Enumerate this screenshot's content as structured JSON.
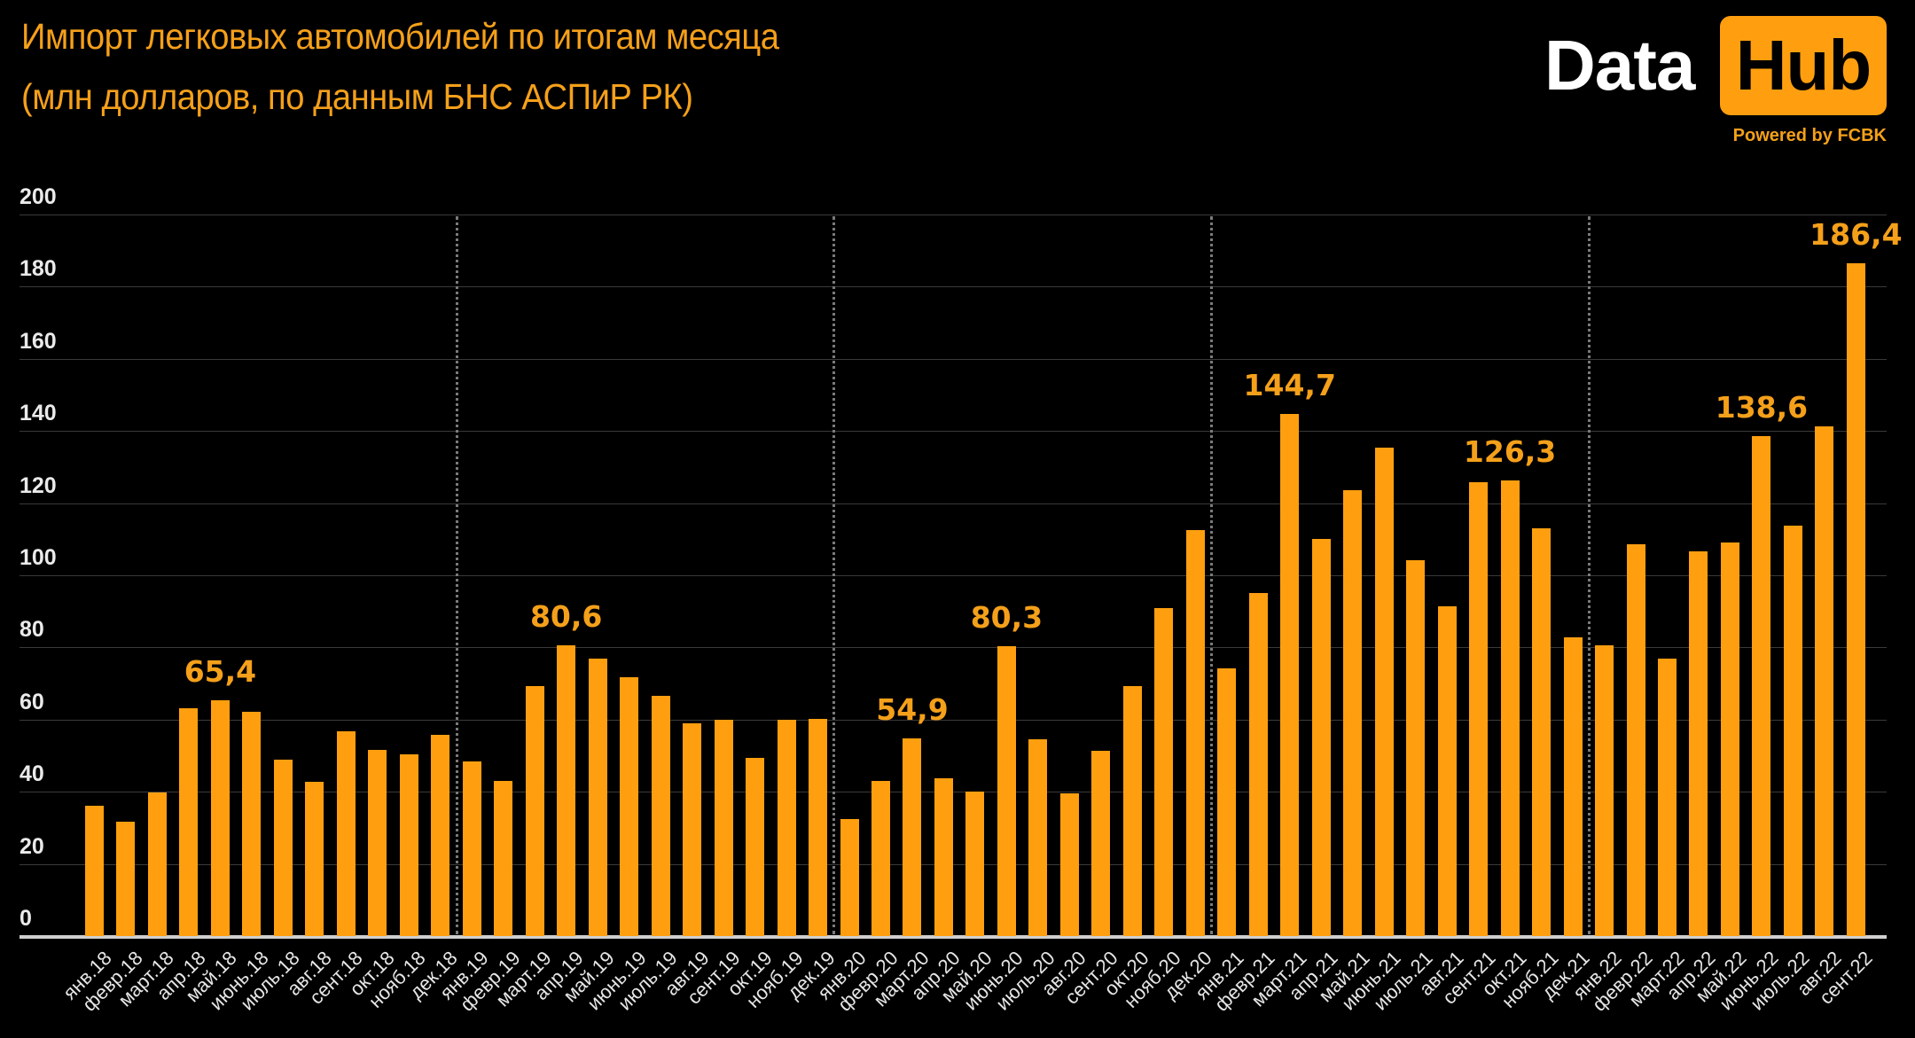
{
  "header": {
    "title_line1": "Импорт легковых автомобилей по итогам месяца",
    "title_line2": "(млн долларов, по данным БНС АСПиР РК)"
  },
  "logo": {
    "data_text": "Data",
    "hub_text": "Hub",
    "powered_by": "Powered by FCBK"
  },
  "colors": {
    "background": "#000000",
    "bar": "#FF9F0F",
    "accent_text": "#F5A01A",
    "axis_text": "#EAEAEA",
    "gridline": "#3A3A3A",
    "divider": "#7A7A7A"
  },
  "chart_data": {
    "type": "bar",
    "title": "Импорт легковых автомобилей по итогам месяца (млн долларов, по данным БНС АСПиР РК)",
    "xlabel": "",
    "ylabel": "",
    "ylim": [
      0,
      200
    ],
    "yticks": [
      0,
      20,
      40,
      60,
      80,
      100,
      120,
      140,
      160,
      180,
      200
    ],
    "grid": true,
    "year_dividers_after": [
      "дек.18",
      "дек.19",
      "дек.20",
      "дек.21"
    ],
    "categories": [
      "янв.18",
      "февр.18",
      "март.18",
      "апр.18",
      "май.18",
      "июнь.18",
      "июль.18",
      "авг.18",
      "сент.18",
      "окт.18",
      "нояб.18",
      "дек.18",
      "янв.19",
      "февр.19",
      "март.19",
      "апр.19",
      "май.19",
      "июнь.19",
      "июль.19",
      "авг.19",
      "сент.19",
      "окт.19",
      "нояб.19",
      "дек.19",
      "янв.20",
      "февр.20",
      "март.20",
      "апр.20",
      "май.20",
      "июнь.20",
      "июль.20",
      "авг.20",
      "сент.20",
      "окт.20",
      "нояб.20",
      "дек.20",
      "янв.21",
      "февр.21",
      "март.21",
      "апр.21",
      "май.21",
      "июнь.21",
      "июль.21",
      "авг.21",
      "сент.21",
      "окт.21",
      "нояб.21",
      "дек.21",
      "янв.22",
      "февр.22",
      "март.22",
      "апр.22",
      "май.22",
      "июнь.22",
      "июль.22",
      "авг.22",
      "сент.22"
    ],
    "values": [
      36.0,
      31.6,
      39.7,
      63.2,
      65.4,
      62.2,
      49.0,
      42.7,
      56.8,
      51.5,
      50.3,
      55.8,
      48.5,
      42.9,
      69.3,
      80.6,
      77.0,
      71.7,
      66.6,
      59.0,
      59.9,
      49.5,
      59.9,
      60.2,
      32.4,
      43.0,
      54.9,
      43.7,
      40.1,
      80.3,
      54.6,
      39.5,
      51.4,
      69.2,
      91.0,
      112.6,
      74.1,
      95.0,
      144.7,
      110.1,
      123.7,
      135.3,
      104.2,
      91.3,
      125.9,
      126.3,
      113.1,
      82.9,
      80.6,
      108.7,
      76.9,
      106.7,
      109.1,
      138.6,
      113.8,
      141.3,
      186.4
    ],
    "annotations": [
      {
        "category": "май.18",
        "text": "65,4"
      },
      {
        "category": "апр.19",
        "text": "80,6"
      },
      {
        "category": "март.20",
        "text": "54,9"
      },
      {
        "category": "июнь.20",
        "text": "80,3"
      },
      {
        "category": "март.21",
        "text": "144,7"
      },
      {
        "category": "окт.21",
        "text": "126,3"
      },
      {
        "category": "июнь.22",
        "text": "138,6"
      },
      {
        "category": "сент.22",
        "text": "186,4"
      }
    ]
  }
}
